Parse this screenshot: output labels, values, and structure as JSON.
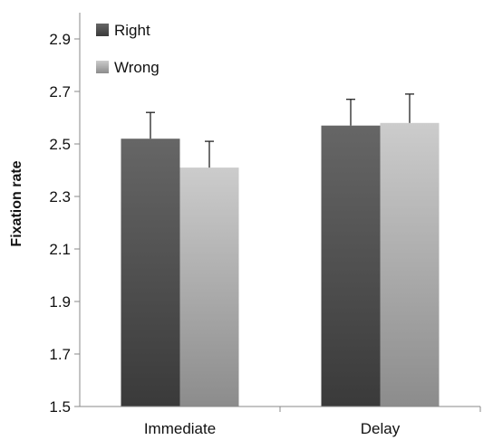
{
  "chart_data": {
    "type": "bar",
    "title": "",
    "xlabel": "",
    "ylabel": "Fixation rate",
    "categories": [
      "Immediate",
      "Delay"
    ],
    "ylim": [
      1.5,
      3.0
    ],
    "yticks": [
      "1.5",
      "1.7",
      "1.9",
      "2.1",
      "2.3",
      "2.5",
      "2.7",
      "2.9"
    ],
    "grid": false,
    "legend_position": "top-left",
    "error_bars": "upper only",
    "series": [
      {
        "name": "Right",
        "values": [
          2.52,
          2.57
        ],
        "errors": [
          0.1,
          0.1
        ],
        "color_top": "#666666",
        "color_bottom": "#3a3a3a"
      },
      {
        "name": "Wrong",
        "values": [
          2.41,
          2.58
        ],
        "errors": [
          0.1,
          0.11
        ],
        "color_top": "#cccccc",
        "color_bottom": "#8c8c8c"
      }
    ]
  }
}
